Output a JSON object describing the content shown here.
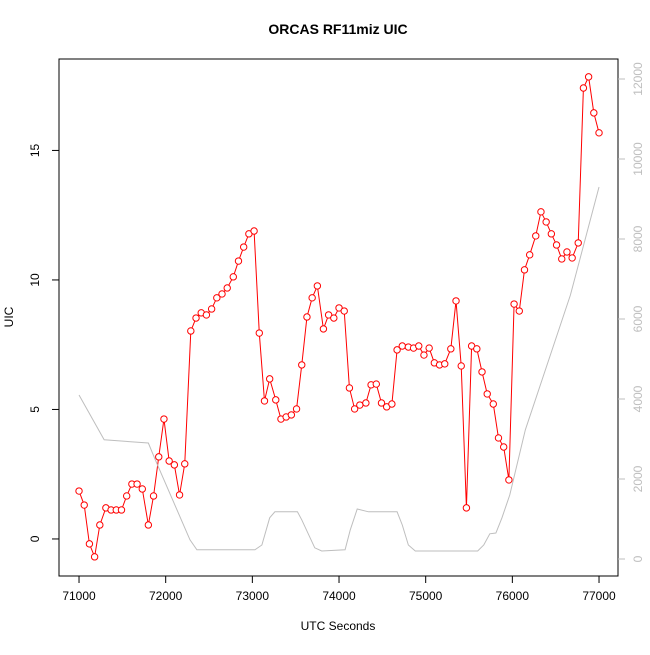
{
  "chart_data": {
    "type": "line",
    "title": "ORCAS RF11miz UIC",
    "x_label": "UTC Seconds",
    "y_label": "UIC",
    "xlim": [
      70769,
      77219
    ],
    "xticks": [
      71000,
      72000,
      73000,
      74000,
      75000,
      76000,
      77000
    ],
    "ylim": [
      -1.43,
      18.53
    ],
    "yticks": [
      0,
      5,
      10,
      15
    ],
    "y2lim": [
      -425,
      12500
    ],
    "y2ticks": [
      0,
      2000,
      4000,
      6000,
      8000,
      10000,
      12000
    ],
    "series": [
      {
        "color": "#ff0000",
        "marker": "circle",
        "x": [
          71000,
          71060,
          71120,
          71180,
          71240,
          71310,
          71370,
          71430,
          71490,
          71550,
          71610,
          71670,
          71730,
          71800,
          71860,
          71920,
          71980,
          72040,
          72100,
          72160,
          72220,
          72290,
          72350,
          72410,
          72470,
          72530,
          72590,
          72650,
          72710,
          72780,
          72840,
          72900,
          72960,
          73020,
          73080,
          73140,
          73200,
          73270,
          73330,
          73390,
          73450,
          73510,
          73570,
          73630,
          73690,
          73750,
          73820,
          73880,
          73940,
          74000,
          74060,
          74120,
          74180,
          74240,
          74310,
          74370,
          74430,
          74490,
          74550,
          74610,
          74670,
          74730,
          74800,
          74860,
          74920,
          74980,
          75040,
          75100,
          75160,
          75220,
          75290,
          75350,
          75410,
          75470,
          75530,
          75590,
          75650,
          75710,
          75780,
          75840,
          75900,
          75960,
          76020,
          76080,
          76140,
          76200,
          76270,
          76330,
          76390,
          76450,
          76510,
          76570,
          76630,
          76690,
          76760,
          76820,
          76880,
          76940,
          77000
        ],
        "values": [
          1.85,
          1.31,
          -0.19,
          -0.69,
          0.54,
          1.2,
          1.12,
          1.12,
          1.12,
          1.66,
          2.12,
          2.12,
          1.93,
          0.54,
          1.66,
          3.17,
          4.63,
          3.01,
          2.86,
          1.7,
          2.9,
          8.03,
          8.53,
          8.73,
          8.65,
          8.88,
          9.31,
          9.46,
          9.69,
          10.12,
          10.73,
          11.27,
          11.78,
          11.89,
          7.95,
          5.33,
          6.18,
          5.37,
          4.63,
          4.71,
          4.79,
          5.02,
          6.72,
          8.57,
          9.31,
          9.77,
          8.11,
          8.65,
          8.53,
          8.92,
          8.8,
          5.83,
          5.02,
          5.17,
          5.25,
          5.95,
          5.98,
          5.25,
          5.1,
          5.21,
          7.3,
          7.45,
          7.41,
          7.37,
          7.45,
          7.1,
          7.37,
          6.8,
          6.72,
          6.76,
          7.34,
          9.19,
          6.68,
          1.2,
          7.45,
          7.34,
          6.45,
          5.6,
          5.21,
          3.9,
          3.55,
          2.28,
          9.07,
          8.8,
          10.39,
          10.97,
          11.7,
          12.63,
          12.24,
          11.78,
          11.35,
          10.81,
          11.08,
          10.85,
          11.43,
          17.41,
          17.84,
          16.45,
          15.68
        ]
      },
      {
        "color": "#bebebe",
        "axis": "y2",
        "x": [
          71000,
          71290,
          71800,
          71880,
          72280,
          72360,
          73030,
          73110,
          73200,
          73260,
          73520,
          73570,
          73720,
          73800,
          74070,
          74130,
          74210,
          74340,
          74670,
          74730,
          74800,
          74880,
          75600,
          75670,
          75740,
          75810,
          75880,
          75970,
          76150,
          76670,
          77000
        ],
        "values": [
          4100,
          2980,
          2900,
          2480,
          480,
          230,
          230,
          350,
          1030,
          1180,
          1180,
          980,
          280,
          200,
          230,
          730,
          1250,
          1180,
          1180,
          850,
          350,
          200,
          200,
          350,
          630,
          650,
          1030,
          1600,
          3230,
          6600,
          9300
        ]
      }
    ]
  }
}
